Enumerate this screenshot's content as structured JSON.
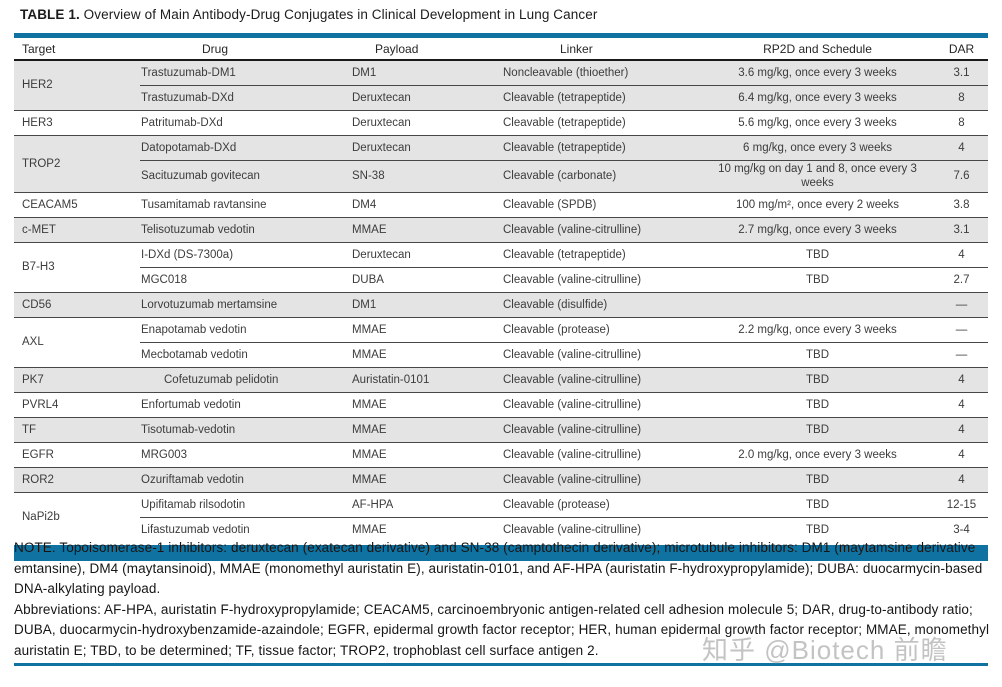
{
  "title": {
    "label": "TABLE 1.",
    "text": "Overview of Main Antibody-Drug Conjugates in Clinical Development in Lung Cancer"
  },
  "table": {
    "columns": [
      "Target",
      "Drug",
      "Payload",
      "Linker",
      "RP2D and Schedule",
      "DAR"
    ],
    "groups": [
      {
        "target": "HER2",
        "shaded": true,
        "rows": [
          {
            "drug": "Trastuzumab-DM1",
            "payload": "DM1",
            "linker": "Noncleavable (thioether)",
            "rp2d": "3.6 mg/kg, once every 3 weeks",
            "dar": "3.1"
          },
          {
            "drug": "Trastuzumab-DXd",
            "payload": "Deruxtecan",
            "linker": "Cleavable (tetrapeptide)",
            "rp2d": "6.4 mg/kg, once every 3 weeks",
            "dar": "8"
          }
        ]
      },
      {
        "target": "HER3",
        "shaded": false,
        "rows": [
          {
            "drug": "Patritumab-DXd",
            "payload": "Deruxtecan",
            "linker": "Cleavable (tetrapeptide)",
            "rp2d": "5.6 mg/kg, once every 3 weeks",
            "dar": "8"
          }
        ]
      },
      {
        "target": "TROP2",
        "shaded": true,
        "rows": [
          {
            "drug": "Datopotamab-DXd",
            "payload": "Deruxtecan",
            "linker": "Cleavable (tetrapeptide)",
            "rp2d": "6 mg/kg, once every 3 weeks",
            "dar": "4"
          },
          {
            "drug": "Sacituzumab govitecan",
            "payload": "SN-38",
            "linker": "Cleavable (carbonate)",
            "rp2d": "10 mg/kg on day 1 and 8, once every 3 weeks",
            "dar": "7.6"
          }
        ]
      },
      {
        "target": "CEACAM5",
        "shaded": false,
        "rows": [
          {
            "drug": "Tusamitamab ravtansine",
            "payload": "DM4",
            "linker": "Cleavable (SPDB)",
            "rp2d": "100 mg/m², once every 2 weeks",
            "dar": "3.8"
          }
        ]
      },
      {
        "target": "c-MET",
        "shaded": true,
        "rows": [
          {
            "drug": "Telisotuzumab vedotin",
            "payload": "MMAE",
            "linker": "Cleavable (valine-citrulline)",
            "rp2d": "2.7 mg/kg, once every 3 weeks",
            "dar": "3.1"
          }
        ]
      },
      {
        "target": "B7-H3",
        "shaded": false,
        "rows": [
          {
            "drug": "I-DXd (DS-7300a)",
            "payload": "Deruxtecan",
            "linker": "Cleavable (tetrapeptide)",
            "rp2d": "TBD",
            "dar": "4"
          },
          {
            "drug": "MGC018",
            "payload": "DUBA",
            "linker": "Cleavable (valine-citrulline)",
            "rp2d": "TBD",
            "dar": "2.7"
          }
        ]
      },
      {
        "target": "CD56",
        "shaded": true,
        "rows": [
          {
            "drug": "Lorvotuzumab mertamsine",
            "payload": "DM1",
            "linker": "Cleavable (disulfide)",
            "rp2d": "",
            "dar": "—"
          }
        ]
      },
      {
        "target": "AXL",
        "shaded": false,
        "rows": [
          {
            "drug": "Enapotamab vedotin",
            "payload": "MMAE",
            "linker": "Cleavable (protease)",
            "rp2d": "2.2 mg/kg, once every 3 weeks",
            "dar": "—"
          },
          {
            "drug": "Mecbotamab vedotin",
            "payload": "MMAE",
            "linker": "Cleavable (valine-citrulline)",
            "rp2d": "TBD",
            "dar": "—"
          }
        ]
      },
      {
        "target": "PK7",
        "shaded": true,
        "rows": [
          {
            "drug": "Cofetuzumab pelidotin",
            "indent": true,
            "payload": "Auristatin-0101",
            "linker": "Cleavable (valine-citrulline)",
            "rp2d": "TBD",
            "dar": "4"
          }
        ]
      },
      {
        "target": "PVRL4",
        "shaded": false,
        "rows": [
          {
            "drug": "Enfortumab vedotin",
            "payload": "MMAE",
            "linker": "Cleavable (valine-citrulline)",
            "rp2d": "TBD",
            "dar": "4"
          }
        ]
      },
      {
        "target": "TF",
        "shaded": true,
        "rows": [
          {
            "drug": "Tisotumab-vedotin",
            "payload": "MMAE",
            "linker": "Cleavable (valine-citrulline)",
            "rp2d": "TBD",
            "dar": "4"
          }
        ]
      },
      {
        "target": "EGFR",
        "shaded": false,
        "rows": [
          {
            "drug": "MRG003",
            "payload": "MMAE",
            "linker": "Cleavable (valine-citrulline)",
            "rp2d": "2.0 mg/kg, once every 3 weeks",
            "dar": "4"
          }
        ]
      },
      {
        "target": "ROR2",
        "shaded": true,
        "rows": [
          {
            "drug": "Ozuriftamab vedotin",
            "payload": "MMAE",
            "linker": "Cleavable (valine-citrulline)",
            "rp2d": "TBD",
            "dar": "4"
          }
        ]
      },
      {
        "target": "NaPi2b",
        "shaded": false,
        "rows": [
          {
            "drug": "Upifitamab rilsodotin",
            "payload": "AF-HPA",
            "linker": "Cleavable (protease)",
            "rp2d": "TBD",
            "dar": "12-15"
          },
          {
            "drug": "Lifastuzumab vedotin",
            "payload": "MMAE",
            "linker": "Cleavable (valine-citrulline)",
            "rp2d": "TBD",
            "dar": "3-4"
          }
        ]
      }
    ]
  },
  "note": "NOTE. Topoisomerase-1 inhibitors: deruxtecan (exatecan derivative) and SN-38 (camptothecin derivative); microtubule inhibitors: DM1 (maytamsine derivative emtansine), DM4 (maytansinoid), MMAE (monomethyl auristatin E), auristatin-0101, and AF-HPA (auristatin F-hydroxypropylamide); DUBA: duocarmycin-based DNA-alkylating payload.",
  "abbreviations": "Abbreviations: AF-HPA, auristatin F-hydroxypropylamide; CEACAM5, carcinoembryonic antigen-related cell adhesion molecule 5; DAR, drug-to-antibody ratio; DUBA, duocarmycin-hydroxybenzamide-azaindole; EGFR, epidermal growth factor receptor; HER, human epidermal growth factor receptor; MMAE, monomethyl auristatin E; TBD, to be determined; TF, tissue factor; TROP2, trophoblast cell surface antigen 2.",
  "watermark": "知乎 @Biotech 前瞻",
  "colors": {
    "accent_teal": "#0f72a0",
    "row_shade": "#e4e4e4"
  }
}
